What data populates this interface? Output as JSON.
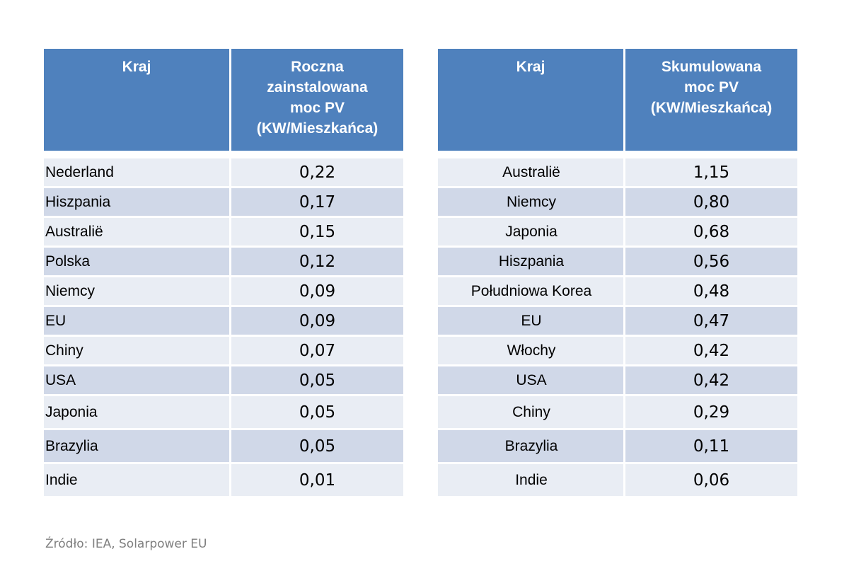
{
  "left_table": {
    "headers": [
      "Kraj",
      "Roczna\nzainstalowana\nmoc PV\n(KW/Mieszkańca)"
    ],
    "rows": [
      {
        "country": "Nederland",
        "value": "0,22"
      },
      {
        "country": "Hiszpania",
        "value": "0,17"
      },
      {
        "country": "Australië",
        "value": "0,15"
      },
      {
        "country": "Polska",
        "value": "0,12"
      },
      {
        "country": "Niemcy",
        "value": "0,09"
      },
      {
        "country": "EU",
        "value": "0,09"
      },
      {
        "country": "Chiny",
        "value": "0,07"
      },
      {
        "country": "USA",
        "value": "0,05"
      },
      {
        "country": "Japonia",
        "value": "0,05"
      },
      {
        "country": "Brazylia",
        "value": "0,05"
      },
      {
        "country": "Indie",
        "value": "0,01"
      }
    ]
  },
  "right_table": {
    "headers": [
      "Kraj",
      "Skumulowana\nmoc PV\n(KW/Mieszkańca)"
    ],
    "rows": [
      {
        "country": "Australië",
        "value": "1,15"
      },
      {
        "country": "Niemcy",
        "value": "0,80"
      },
      {
        "country": "Japonia",
        "value": "0,68"
      },
      {
        "country": "Hiszpania",
        "value": "0,56"
      },
      {
        "country": "Południowa Korea",
        "value": "0,48"
      },
      {
        "country": "EU",
        "value": "0,47"
      },
      {
        "country": "Włochy",
        "value": "0,42"
      },
      {
        "country": "USA",
        "value": "0,42"
      },
      {
        "country": "Chiny",
        "value": "0,29"
      },
      {
        "country": "Brazylia",
        "value": "0,11"
      },
      {
        "country": "Indie",
        "value": "0,06"
      }
    ]
  },
  "source": "Źródło: IEA, Solarpower EU",
  "colors": {
    "header_bg": "#4f81bd",
    "row_dark": "#d0d8e8",
    "row_light": "#e9edf4",
    "source_text": "#7f7f7f"
  }
}
